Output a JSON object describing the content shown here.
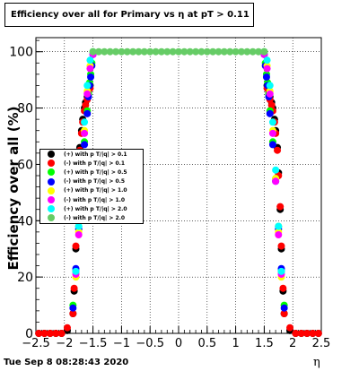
{
  "title": "Efficiency over all for Primary vs  η at pT > 0.11",
  "date_text": "Tue Sep  8 08:28:43 2020",
  "chart_data": {
    "type": "scatter",
    "title": "Efficiency over all for Primary vs  η at pT > 0.11",
    "xlabel": "η",
    "ylabel": "Efficiency over all (%)",
    "xlim": [
      -2.5,
      2.5
    ],
    "ylim": [
      0,
      105
    ],
    "x_ticks": [
      -2.5,
      -2,
      -1.5,
      -1,
      -0.5,
      0,
      0.5,
      1,
      1.5,
      2,
      2.5
    ],
    "x_tick_labels": [
      "−2.5",
      "−2",
      "−1.5",
      "−1",
      "−0.5",
      "0",
      "0.5",
      "1",
      "1.5",
      "2",
      "2.5"
    ],
    "y_ticks": [
      0,
      20,
      40,
      60,
      80,
      100
    ],
    "y_tick_labels": [
      "0",
      "20",
      "40",
      "60",
      "80",
      "100"
    ],
    "grid": true,
    "legend_position": "left",
    "series": [
      {
        "name": "(+) with p T/|q| > 0.1",
        "color": "#000000",
        "x": [
          -2.45,
          -2.35,
          -2.25,
          -2.15,
          -2.05,
          -1.95,
          -1.85,
          -1.83,
          -1.8,
          -1.78,
          -1.75,
          -1.73,
          -1.7,
          -1.68,
          -1.65,
          -1.63,
          -1.6,
          -1.58,
          -1.55,
          1.55,
          1.58,
          1.6,
          1.63,
          1.65,
          1.68,
          1.7,
          1.73,
          1.75,
          1.78,
          1.8,
          1.83,
          1.85,
          1.95,
          2.05,
          2.15,
          2.25,
          2.35,
          2.45
        ],
        "y": [
          0,
          0,
          0,
          0,
          0,
          1,
          7,
          15,
          30,
          44,
          57,
          66,
          72,
          76,
          80,
          82,
          84,
          86,
          88,
          88,
          86,
          84,
          82,
          80,
          76,
          72,
          66,
          57,
          44,
          30,
          15,
          7,
          1,
          0,
          0,
          0,
          0,
          0
        ]
      },
      {
        "name": "(-) with p T/|q| > 0.1",
        "color": "#ff0000",
        "x": [
          -2.45,
          -2.35,
          -2.25,
          -2.15,
          -2.05,
          -1.95,
          -1.85,
          -1.83,
          -1.8,
          -1.78,
          -1.75,
          -1.73,
          -1.7,
          -1.68,
          -1.65,
          -1.63,
          -1.6,
          -1.58,
          -1.55,
          1.55,
          1.58,
          1.6,
          1.63,
          1.65,
          1.68,
          1.7,
          1.73,
          1.75,
          1.78,
          1.8,
          1.83,
          1.85,
          1.95,
          2.05,
          2.15,
          2.25,
          2.35,
          2.45
        ],
        "y": [
          0,
          0,
          0,
          0,
          0,
          2,
          7,
          16,
          31,
          45,
          56,
          65,
          71,
          75,
          79,
          81,
          83,
          85,
          87,
          87,
          85,
          83,
          81,
          79,
          75,
          71,
          65,
          56,
          45,
          31,
          16,
          7,
          2,
          0,
          0,
          0,
          0,
          0
        ]
      },
      {
        "name": "(+) with p T/|q| > 0.5",
        "color": "#00ff00",
        "x": [
          -1.85,
          -1.8,
          -1.75,
          -1.7,
          -1.65,
          -1.6,
          -1.58,
          -1.56,
          -1.54,
          -1.52,
          -1.5,
          1.5,
          1.52,
          1.54,
          1.56,
          1.58,
          1.6,
          1.65,
          1.7,
          1.75,
          1.8,
          1.85
        ],
        "y": [
          10,
          22,
          38,
          55,
          68,
          79,
          85,
          89,
          92,
          96,
          100,
          100,
          96,
          92,
          89,
          85,
          79,
          68,
          55,
          38,
          22,
          10
        ]
      },
      {
        "name": "(-) with p T/|q| > 0.5",
        "color": "#0000ff",
        "x": [
          -1.85,
          -1.8,
          -1.75,
          -1.7,
          -1.65,
          -1.6,
          -1.58,
          -1.56,
          -1.54,
          -1.52,
          -1.5,
          1.5,
          1.52,
          1.54,
          1.56,
          1.58,
          1.6,
          1.65,
          1.7,
          1.75,
          1.8,
          1.85
        ],
        "y": [
          9,
          23,
          37,
          54,
          67,
          78,
          84,
          88,
          91,
          95,
          99,
          99,
          95,
          91,
          88,
          84,
          78,
          67,
          54,
          37,
          23,
          9
        ]
      },
      {
        "name": "(+) with p T/|q| > 1.0",
        "color": "#ffff00",
        "x": [
          -1.8,
          -1.75,
          -1.7,
          -1.65,
          -1.6,
          -1.55,
          -1.5,
          1.5,
          1.55,
          1.6,
          1.65,
          1.7,
          1.75,
          1.8
        ],
        "y": [
          20,
          36,
          55,
          72,
          86,
          95,
          100,
          100,
          95,
          86,
          72,
          55,
          36,
          20
        ]
      },
      {
        "name": "(-) with p T/|q| > 1.0",
        "color": "#ff00ff",
        "x": [
          -1.8,
          -1.75,
          -1.7,
          -1.65,
          -1.6,
          -1.55,
          -1.5,
          1.5,
          1.55,
          1.6,
          1.65,
          1.7,
          1.75,
          1.8
        ],
        "y": [
          21,
          35,
          54,
          71,
          85,
          94,
          99,
          99,
          94,
          85,
          71,
          54,
          35,
          21
        ]
      },
      {
        "name": "(+) with p T/|q| > 2.0",
        "color": "#00ffff",
        "x": [
          -1.8,
          -1.75,
          -1.7,
          -1.65,
          -1.6,
          -1.55,
          -1.5,
          1.5,
          1.55,
          1.6,
          1.65,
          1.7,
          1.75,
          1.8
        ],
        "y": [
          22,
          38,
          58,
          75,
          88,
          97,
          100,
          100,
          97,
          88,
          75,
          58,
          38,
          22
        ]
      },
      {
        "name": "(-) with p T/|q| > 2.0",
        "color": "#66cc66",
        "x": [
          -1.5,
          -1.4,
          -1.3,
          -1.2,
          -1.1,
          -1.0,
          -0.9,
          -0.8,
          -0.7,
          -0.6,
          -0.5,
          -0.4,
          -0.3,
          -0.2,
          -0.1,
          0.0,
          0.1,
          0.2,
          0.3,
          0.4,
          0.5,
          0.6,
          0.7,
          0.8,
          0.9,
          1.0,
          1.1,
          1.2,
          1.3,
          1.4,
          1.5
        ],
        "y": [
          100,
          100,
          100,
          100,
          100,
          100,
          100,
          100,
          100,
          100,
          100,
          100,
          100,
          100,
          100,
          100,
          100,
          100,
          100,
          100,
          100,
          100,
          100,
          100,
          100,
          100,
          100,
          100,
          100,
          100,
          100
        ]
      }
    ]
  }
}
